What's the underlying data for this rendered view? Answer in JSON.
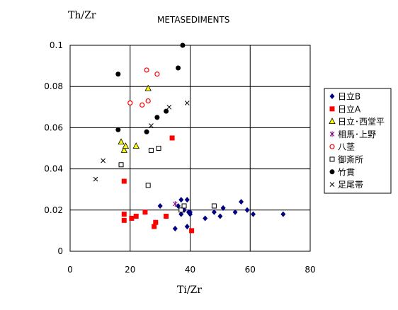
{
  "chart_data": {
    "type": "scatter",
    "title": "METASEDIMENTS",
    "xlabel": "Ti/Zr",
    "ylabel": "Th/Zr",
    "xlim": [
      0,
      80
    ],
    "ylim": [
      0,
      0.1
    ],
    "xticks": [
      "0",
      "20",
      "40",
      "60",
      "80"
    ],
    "yticks": [
      "0",
      "0.02",
      "0.04",
      "0.06",
      "0.08",
      "0.1"
    ],
    "grid": true,
    "legend_position": "right",
    "series": [
      {
        "name": "日立B",
        "marker": "diamond",
        "color": "#000080",
        "points": [
          [
            30,
            0.022
          ],
          [
            35,
            0.011
          ],
          [
            36,
            0.022
          ],
          [
            37,
            0.018
          ],
          [
            37,
            0.025
          ],
          [
            38,
            0.02
          ],
          [
            39,
            0.012
          ],
          [
            39,
            0.025
          ],
          [
            39.5,
            0.019
          ],
          [
            40,
            0.018
          ],
          [
            40,
            0.019
          ],
          [
            45,
            0.016
          ],
          [
            48,
            0.019
          ],
          [
            50,
            0.017
          ],
          [
            51,
            0.021
          ],
          [
            55,
            0.019
          ],
          [
            57,
            0.024
          ],
          [
            59,
            0.02
          ],
          [
            61,
            0.018
          ],
          [
            71,
            0.018
          ]
        ]
      },
      {
        "name": "日立A",
        "marker": "square",
        "color": "#ff0000",
        "points": [
          [
            18,
            0.034
          ],
          [
            18,
            0.018
          ],
          [
            18,
            0.015
          ],
          [
            20.5,
            0.016
          ],
          [
            22,
            0.017
          ],
          [
            25,
            0.019
          ],
          [
            28,
            0.012
          ],
          [
            28.5,
            0.014
          ],
          [
            32,
            0.017
          ],
          [
            34,
            0.055
          ],
          [
            40.5,
            0.01
          ]
        ]
      },
      {
        "name": "日立･西堂平",
        "marker": "triangle",
        "color": "#ffff00",
        "points": [
          [
            17,
            0.053
          ],
          [
            18,
            0.049
          ],
          [
            18.5,
            0.051
          ],
          [
            22,
            0.051
          ],
          [
            26,
            0.079
          ]
        ]
      },
      {
        "name": "相馬･上野",
        "marker": "star",
        "color": "#800080",
        "points": [
          [
            35,
            0.023
          ]
        ]
      },
      {
        "name": "八茎",
        "marker": "circle-open",
        "color": "#ff0000",
        "points": [
          [
            20,
            0.072
          ],
          [
            24,
            0.071
          ],
          [
            25.5,
            0.088
          ],
          [
            26,
            0.073
          ],
          [
            29,
            0.086
          ]
        ]
      },
      {
        "name": "御斎所",
        "marker": "square-open",
        "color": "#000000",
        "points": [
          [
            17,
            0.042
          ],
          [
            26,
            0.032
          ],
          [
            27,
            0.049
          ],
          [
            29.5,
            0.05
          ],
          [
            37,
            0.02
          ],
          [
            38,
            0.022
          ],
          [
            48,
            0.022
          ]
        ]
      },
      {
        "name": "竹貫",
        "marker": "circle",
        "color": "#000000",
        "points": [
          [
            16,
            0.086
          ],
          [
            16,
            0.059
          ],
          [
            25.5,
            0.058
          ],
          [
            29,
            0.065
          ],
          [
            32,
            0.068
          ],
          [
            36,
            0.089
          ],
          [
            37.5,
            0.1
          ]
        ]
      },
      {
        "name": "足尾帯",
        "marker": "x",
        "color": "#000000",
        "points": [
          [
            8.5,
            0.035
          ],
          [
            11,
            0.044
          ],
          [
            27,
            0.061
          ],
          [
            33,
            0.07
          ],
          [
            39,
            0.072
          ]
        ]
      }
    ]
  }
}
